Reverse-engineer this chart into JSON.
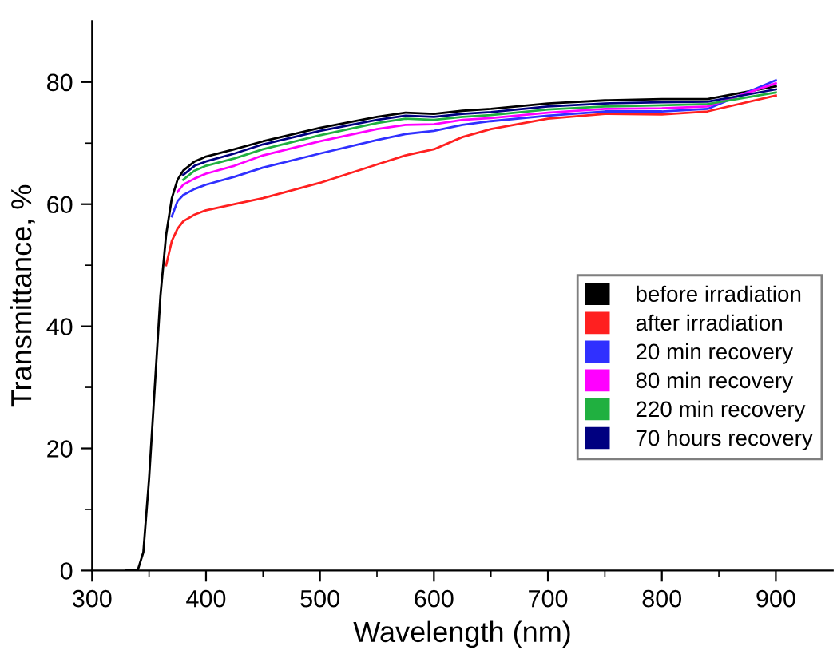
{
  "chart_data": {
    "type": "line",
    "xlabel": "Wavelength (nm)",
    "ylabel": "Transmittance, %",
    "series": [
      {
        "name": "before irradiation",
        "color": "#000000",
        "x": [
          330,
          340,
          345,
          350,
          355,
          360,
          365,
          370,
          375,
          380,
          390,
          400,
          425,
          450,
          500,
          550,
          575,
          600,
          625,
          650,
          700,
          750,
          800,
          840,
          900
        ],
        "values": [
          0,
          0,
          3,
          15,
          30,
          45,
          55,
          61,
          64,
          65.5,
          67,
          67.8,
          69,
          70.3,
          72.5,
          74.3,
          75,
          74.8,
          75.3,
          75.6,
          76.5,
          77,
          77.2,
          77.2,
          79.3
        ]
      },
      {
        "name": "after irradiation",
        "color": "#ff2020",
        "x": [
          365,
          370,
          375,
          380,
          390,
          400,
          425,
          450,
          500,
          550,
          575,
          600,
          625,
          650,
          700,
          750,
          800,
          840,
          900
        ],
        "values": [
          50,
          54,
          56,
          57.2,
          58.3,
          59,
          60,
          61,
          63.5,
          66.5,
          68,
          69,
          71,
          72.3,
          74,
          74.8,
          74.7,
          75.2,
          77.8
        ]
      },
      {
        "name": "20 min recovery",
        "color": "#3030ff",
        "x": [
          370,
          375,
          380,
          390,
          400,
          425,
          450,
          500,
          550,
          575,
          600,
          625,
          650,
          700,
          750,
          800,
          840,
          900
        ],
        "values": [
          58,
          60.5,
          61.5,
          62.5,
          63.2,
          64.5,
          66,
          68.3,
          70.5,
          71.5,
          72,
          73,
          73.6,
          74.5,
          75.2,
          75.2,
          75.6,
          80.3
        ]
      },
      {
        "name": "80 min recovery",
        "color": "#ff00ff",
        "x": [
          375,
          380,
          390,
          400,
          425,
          450,
          500,
          550,
          575,
          600,
          625,
          650,
          700,
          750,
          800,
          840,
          900
        ],
        "values": [
          62,
          63.2,
          64.2,
          65,
          66.3,
          68,
          70.3,
          72.3,
          73,
          73.1,
          73.8,
          74.1,
          75,
          75.6,
          75.7,
          76,
          79.8
        ]
      },
      {
        "name": "220 min recovery",
        "color": "#20b040",
        "x": [
          380,
          390,
          400,
          425,
          450,
          500,
          550,
          575,
          600,
          625,
          650,
          700,
          750,
          800,
          840,
          900
        ],
        "values": [
          64,
          65.5,
          66.3,
          67.5,
          69,
          71.3,
          73.3,
          74,
          73.8,
          74.3,
          74.6,
          75.5,
          76,
          76.2,
          76.4,
          78.3
        ]
      },
      {
        "name": "70 hours recovery",
        "color": "#000080",
        "x": [
          380,
          390,
          400,
          425,
          450,
          500,
          550,
          575,
          600,
          625,
          650,
          700,
          750,
          800,
          840,
          900
        ],
        "values": [
          64.8,
          66.3,
          67,
          68.3,
          69.8,
          72,
          73.8,
          74.5,
          74.3,
          74.8,
          75.1,
          76,
          76.5,
          76.7,
          76.8,
          78.8
        ]
      }
    ],
    "xlim": [
      300,
      950
    ],
    "ylim": [
      0,
      90
    ],
    "xticks": [
      300,
      {
        "value": 350,
        "label": null
      },
      400,
      {
        "value": 450,
        "label": null
      },
      500,
      {
        "value": 550,
        "label": null
      },
      600,
      {
        "value": 650,
        "label": null
      },
      700,
      {
        "value": 750,
        "label": null
      },
      800,
      {
        "value": 850,
        "label": null
      },
      900
    ],
    "yticks": [
      0,
      {
        "value": 10,
        "label": null
      },
      20,
      {
        "value": 30,
        "label": null
      },
      40,
      {
        "value": 50,
        "label": null
      },
      60,
      {
        "value": 70,
        "label": null
      },
      80
    ],
    "grid": false,
    "legend": "right",
    "marker": "none",
    "line_style": "solid"
  }
}
